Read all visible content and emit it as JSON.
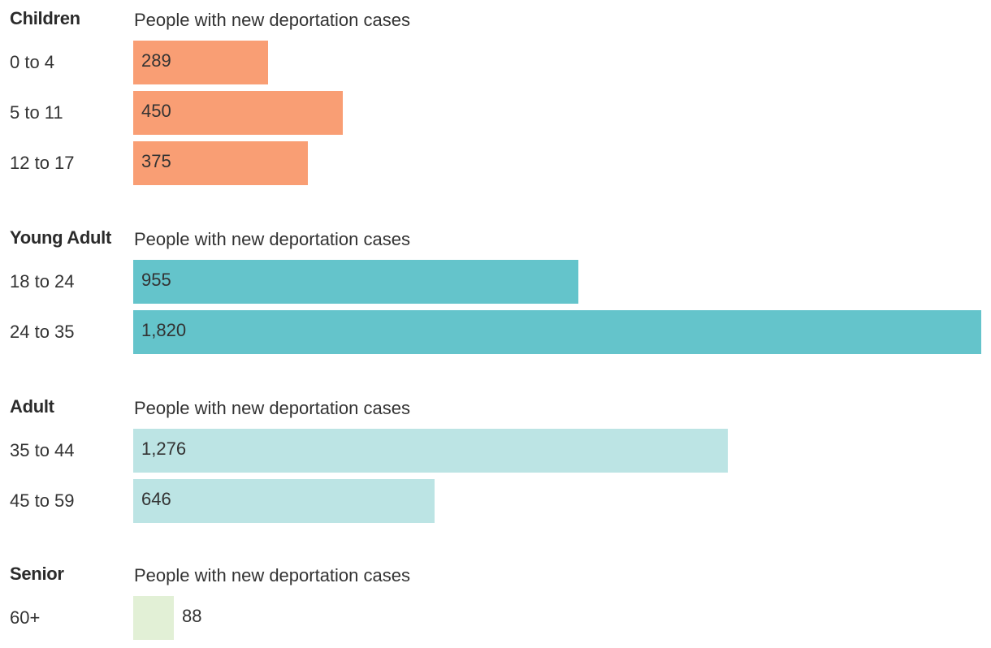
{
  "chart_data": {
    "type": "bar",
    "orientation": "horizontal",
    "max_value": 1820,
    "groups": [
      {
        "title": "Children",
        "subtitle": "People with new deportation cases",
        "color": "#f99e74",
        "rows": [
          {
            "label": "0 to 4",
            "value": 289,
            "value_label": "289"
          },
          {
            "label": "5 to 11",
            "value": 450,
            "value_label": "450"
          },
          {
            "label": "12 to 17",
            "value": 375,
            "value_label": "375"
          }
        ]
      },
      {
        "title": "Young Adult",
        "subtitle": "People with new deportation cases",
        "color": "#64c4cb",
        "rows": [
          {
            "label": "18 to 24",
            "value": 955,
            "value_label": "955"
          },
          {
            "label": "24 to 35",
            "value": 1820,
            "value_label": "1,820"
          }
        ]
      },
      {
        "title": "Adult",
        "subtitle": "People with new deportation cases",
        "color": "#bce4e4",
        "rows": [
          {
            "label": "35 to 44",
            "value": 1276,
            "value_label": "1,276"
          },
          {
            "label": "45 to 59",
            "value": 646,
            "value_label": "646"
          }
        ]
      },
      {
        "title": "Senior",
        "subtitle": "People with new deportation cases",
        "color": "#e2f0d6",
        "rows": [
          {
            "label": "60+",
            "value": 88,
            "value_label": "88"
          }
        ]
      }
    ]
  }
}
